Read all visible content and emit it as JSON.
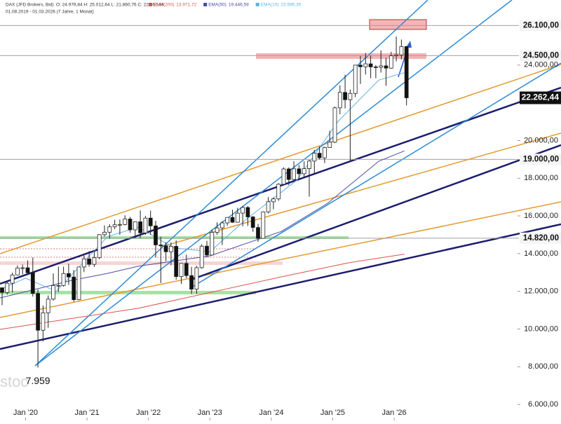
{
  "chart_data": {
    "type": "candlestick",
    "header": {
      "instrument": "DAX (JFD Brokers, Bid)",
      "ohlc": "O: 24.979,84  H: 25.012,64  L: 21.860,76  C: 22.262,44",
      "range": "01.08.2019 - 01.03.2026  (7 Jahre, 1 Monat)"
    },
    "categories": [
      "2019-08",
      "2019-09",
      "2019-10",
      "2019-11",
      "2019-12",
      "2020-01",
      "2020-02",
      "2020-03",
      "2020-04",
      "2020-05",
      "2020-06",
      "2020-07",
      "2020-08",
      "2020-09",
      "2020-10",
      "2020-11",
      "2020-12",
      "2021-01",
      "2021-02",
      "2021-03",
      "2021-04",
      "2021-05",
      "2021-06",
      "2021-07",
      "2021-08",
      "2021-09",
      "2021-10",
      "2021-11",
      "2021-12",
      "2022-01",
      "2022-02",
      "2022-03",
      "2022-04",
      "2022-05",
      "2022-06",
      "2022-07",
      "2022-08",
      "2022-09",
      "2022-10",
      "2022-11",
      "2022-12",
      "2023-01",
      "2023-02",
      "2023-03",
      "2023-04",
      "2023-05",
      "2023-06",
      "2023-07",
      "2023-08",
      "2023-09",
      "2023-10",
      "2023-11",
      "2023-12",
      "2024-01",
      "2024-02",
      "2024-03",
      "2024-04",
      "2024-05",
      "2024-06",
      "2024-07",
      "2024-08",
      "2024-09",
      "2024-10",
      "2024-11",
      "2024-12",
      "2025-01",
      "2025-02",
      "2025-03",
      "2025-04",
      "2025-05",
      "2025-06",
      "2025-07",
      "2025-08",
      "2025-09",
      "2025-10",
      "2025-11",
      "2025-12",
      "2026-01",
      "2026-02",
      "2026-03"
    ],
    "open": [
      12190,
      11939,
      12428,
      12867,
      13236,
      13249,
      12982,
      11890,
      9936,
      10862,
      11587,
      12311,
      12313,
      12945,
      12761,
      11556,
      13292,
      13719,
      13433,
      13786,
      15008,
      15136,
      15421,
      15531,
      15544,
      15835,
      15261,
      15689,
      15100,
      15885,
      15471,
      14461,
      14415,
      14098,
      14388,
      12784,
      13484,
      12835,
      12114,
      13254,
      14397,
      13924,
      15128,
      15365,
      15629,
      15922,
      15664,
      16148,
      16447,
      15947,
      15387,
      14810,
      16215,
      16752,
      16904,
      17678,
      18492,
      17932,
      18498,
      18235,
      18509,
      18907,
      19325,
      19078,
      19626,
      19909,
      21732,
      22551,
      22163,
      22497,
      23997,
      23909,
      24065,
      23902,
      23881,
      23958,
      23836,
      24490,
      24540,
      24979.84
    ],
    "high": [
      12200,
      12494,
      12986,
      13374,
      13425,
      13640,
      13795,
      12100,
      11250,
      11780,
      12950,
      13310,
      13310,
      13460,
      13130,
      13300,
      13900,
      14130,
      14170,
      15030,
      15500,
      15560,
      15800,
      15810,
      16030,
      15950,
      15700,
      16290,
      16000,
      16280,
      15740,
      14900,
      14600,
      14600,
      14700,
      13500,
      13950,
      13300,
      13350,
      14500,
      14680,
      15270,
      15660,
      15720,
      15930,
      16330,
      16430,
      16530,
      16530,
      15990,
      15580,
      16240,
      17000,
      16980,
      17740,
      18570,
      18570,
      18900,
      18700,
      18890,
      18970,
      19500,
      19680,
      19670,
      20520,
      21800,
      22930,
      23480,
      22700,
      24000,
      24480,
      24640,
      24500,
      24000,
      24780,
      24400,
      24700,
      25510,
      25350,
      25012.64
    ],
    "low": [
      11270,
      11830,
      11940,
      12860,
      12900,
      12950,
      11720,
      7959,
      9340,
      10070,
      11500,
      11970,
      12250,
      12340,
      11450,
      11530,
      13020,
      13300,
      13300,
      13700,
      14900,
      14800,
      15300,
      15000,
      15500,
      15100,
      14820,
      14830,
      15000,
      15000,
      13800,
      12440,
      13600,
      13380,
      12620,
      12390,
      12700,
      11860,
      11870,
      13200,
      13800,
      13900,
      15000,
      14460,
      15480,
      15630,
      15700,
      15450,
      15470,
      15160,
      14630,
      14800,
      16130,
      16350,
      16800,
      17650,
      17630,
      17900,
      17950,
      18070,
      17020,
      18200,
      19000,
      18800,
      19660,
      19860,
      21390,
      21700,
      18900,
      22300,
      23000,
      23500,
      23300,
      23300,
      23600,
      22900,
      23800,
      24200,
      24300,
      21860.76
    ],
    "close": [
      11939,
      12428,
      12867,
      13236,
      13249,
      12982,
      11890,
      9936,
      10862,
      11587,
      12311,
      12313,
      12945,
      12761,
      11556,
      13292,
      13719,
      13433,
      13786,
      15008,
      15136,
      15421,
      15531,
      15544,
      15835,
      15261,
      15689,
      15100,
      15885,
      15471,
      14461,
      14415,
      14098,
      14388,
      12784,
      13484,
      12835,
      12114,
      13254,
      14397,
      13924,
      15128,
      15365,
      15629,
      15922,
      15664,
      16148,
      16447,
      15947,
      15387,
      14810,
      16215,
      16752,
      16904,
      17678,
      18492,
      17932,
      18498,
      18235,
      18509,
      18907,
      19325,
      19078,
      19626,
      19909,
      21732,
      22551,
      22163,
      22497,
      23997,
      23909,
      24065,
      23902,
      23881,
      23958,
      23836,
      24490,
      24540,
      24979.84,
      22262.44
    ],
    "ylim": [
      5150,
      27450
    ],
    "yticks": [
      {
        "value": 6000,
        "label": "6.000,00"
      },
      {
        "value": 8000,
        "label": "8.000,00"
      },
      {
        "value": 10000,
        "label": "10.000,00"
      },
      {
        "value": 12000,
        "label": "12.000,00"
      },
      {
        "value": 14000,
        "label": "14.000,00"
      },
      {
        "value": 16000,
        "label": "16.000,00"
      },
      {
        "value": 18000,
        "label": "18.000,00"
      },
      {
        "value": 20000,
        "label": "20.000,00"
      },
      {
        "value": 24000,
        "label": "24.000,00"
      }
    ],
    "xticks": [
      {
        "value": "2020-01",
        "label": "Jan '20"
      },
      {
        "value": "2021-01",
        "label": "Jan '21"
      },
      {
        "value": "2022-01",
        "label": "Jan '22"
      },
      {
        "value": "2023-01",
        "label": "Jan '23"
      },
      {
        "value": "2024-01",
        "label": "Jan '24"
      },
      {
        "value": "2025-01",
        "label": "Jan '25"
      },
      {
        "value": "2026-01",
        "label": "Jan '26"
      }
    ],
    "indicators": [
      {
        "name": "EMA(200)",
        "value_label": "13.971,72",
        "color": "#d9534f",
        "x": [
          "2019-08",
          "2021-11",
          "2024-03",
          "2025-04",
          "2026-03"
        ],
        "values": [
          9980,
          11100,
          12770,
          13510,
          13972
        ]
      },
      {
        "name": "EMA(50)",
        "value_label": "19.446,59",
        "color": "#4a4aa8",
        "x": [
          "2019-08",
          "2020-10",
          "2021-05",
          "2021-11",
          "2023-01",
          "2024-03",
          "2024-12",
          "2025-10",
          "2026-03"
        ],
        "values": [
          11650,
          12580,
          12950,
          13330,
          13880,
          15180,
          16670,
          18900,
          19447
        ]
      },
      {
        "name": "EMA(10)",
        "value_label": "23.595,35",
        "color": "#5fb3e6",
        "x": [
          "2019-08",
          "2020-01",
          "2020-07",
          "2021-05",
          "2021-11",
          "2022-06",
          "2023-01",
          "2023-08",
          "2024-06",
          "2025-02",
          "2025-10",
          "2026-03"
        ],
        "values": [
          12100,
          12700,
          12000,
          14900,
          15400,
          14300,
          14100,
          15800,
          17900,
          21000,
          23200,
          23595
        ]
      }
    ],
    "levels": [
      {
        "value": 26100,
        "label": "26.100,00"
      },
      {
        "value": 24500,
        "label": "24.500,00"
      },
      {
        "value": 19000,
        "label": "19.000,00"
      },
      {
        "value": 14820,
        "label": "14.820,00"
      }
    ],
    "last_label": "22.262,44",
    "low_label": "7.959",
    "watermark": "stoc"
  }
}
